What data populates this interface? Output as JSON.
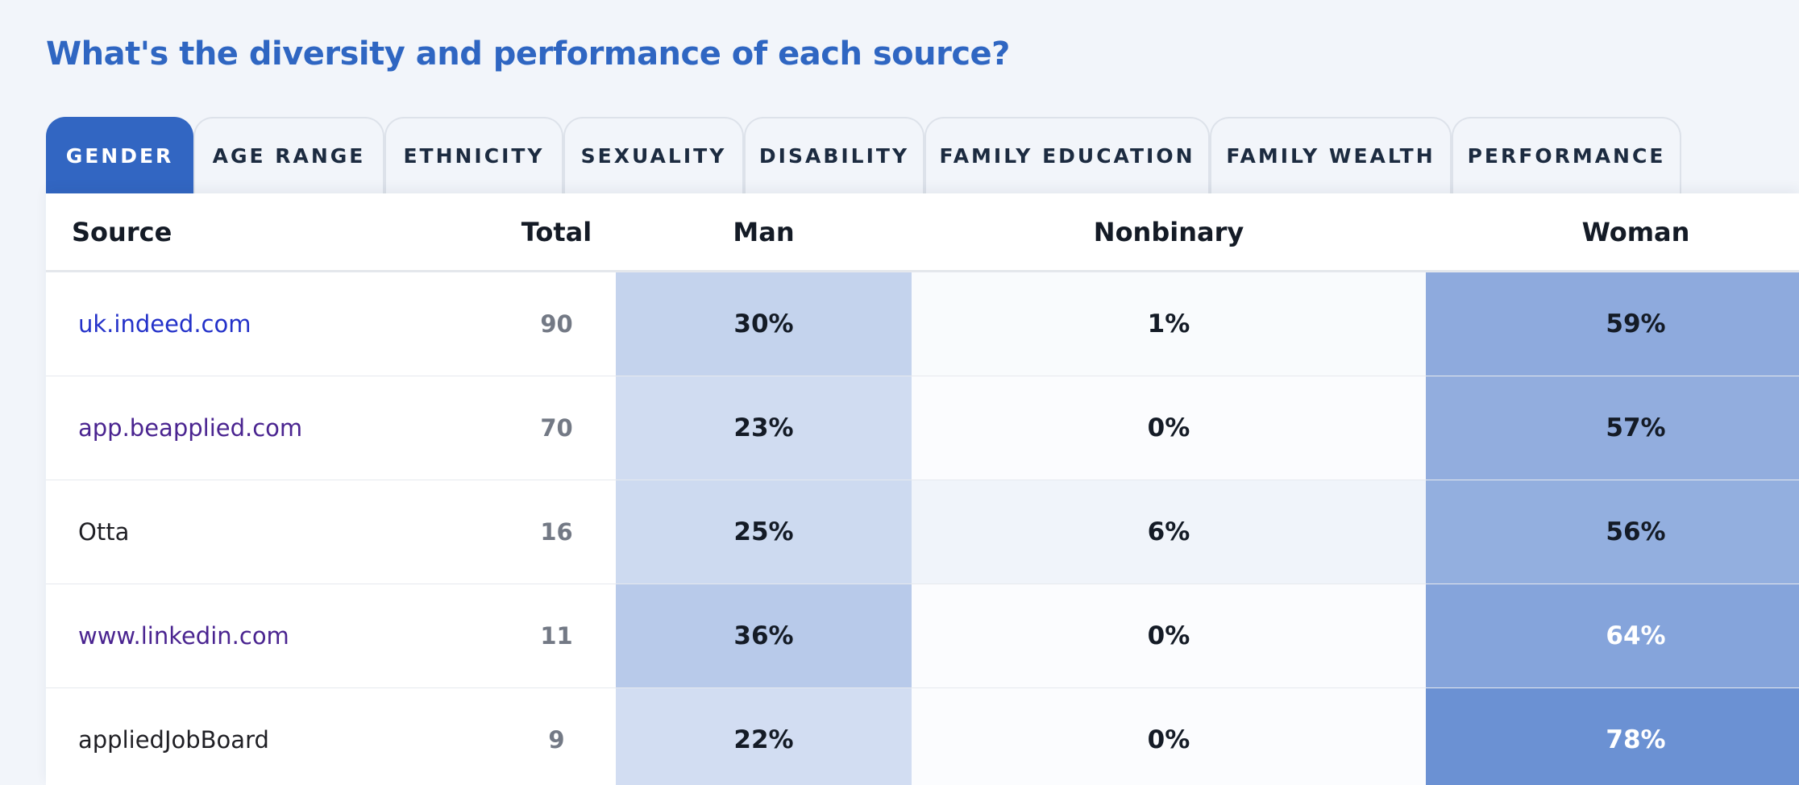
{
  "page": {
    "title": "What's the diversity and performance of each source?"
  },
  "tabs": [
    {
      "label": "GENDER",
      "active": true
    },
    {
      "label": "AGE RANGE",
      "active": false
    },
    {
      "label": "ETHNICITY",
      "active": false
    },
    {
      "label": "SEXUALITY",
      "active": false
    },
    {
      "label": "DISABILITY",
      "active": false
    },
    {
      "label": "FAMILY EDUCATION",
      "active": false
    },
    {
      "label": "FAMILY WEALTH",
      "active": false
    },
    {
      "label": "PERFORMANCE",
      "active": false
    }
  ],
  "table": {
    "headers": {
      "source": "Source",
      "total": "Total",
      "man": "Man",
      "nonbinary": "Nonbinary",
      "woman": "Woman"
    },
    "rows": [
      {
        "source": "uk.indeed.com",
        "link": true,
        "visited": false,
        "total": "90",
        "man": "30%",
        "nonbinary": "1%",
        "woman": "59%"
      },
      {
        "source": "app.beapplied.com",
        "link": true,
        "visited": true,
        "total": "70",
        "man": "23%",
        "nonbinary": "0%",
        "woman": "57%"
      },
      {
        "source": "Otta",
        "link": false,
        "visited": false,
        "total": "16",
        "man": "25%",
        "nonbinary": "6%",
        "woman": "56%"
      },
      {
        "source": "www.linkedin.com",
        "link": true,
        "visited": true,
        "total": "11",
        "man": "36%",
        "nonbinary": "0%",
        "woman": "64%"
      },
      {
        "source": "appliedJobBoard",
        "link": false,
        "visited": false,
        "total": "9",
        "man": "22%",
        "nonbinary": "0%",
        "woman": "78%"
      }
    ]
  },
  "colors": {
    "title": "#2f66c2",
    "tab_active_bg": "#3266c2",
    "heat_base": "#3266c2",
    "heat_text_dark": "#141b26",
    "heat_text_light": "#ffffff"
  }
}
